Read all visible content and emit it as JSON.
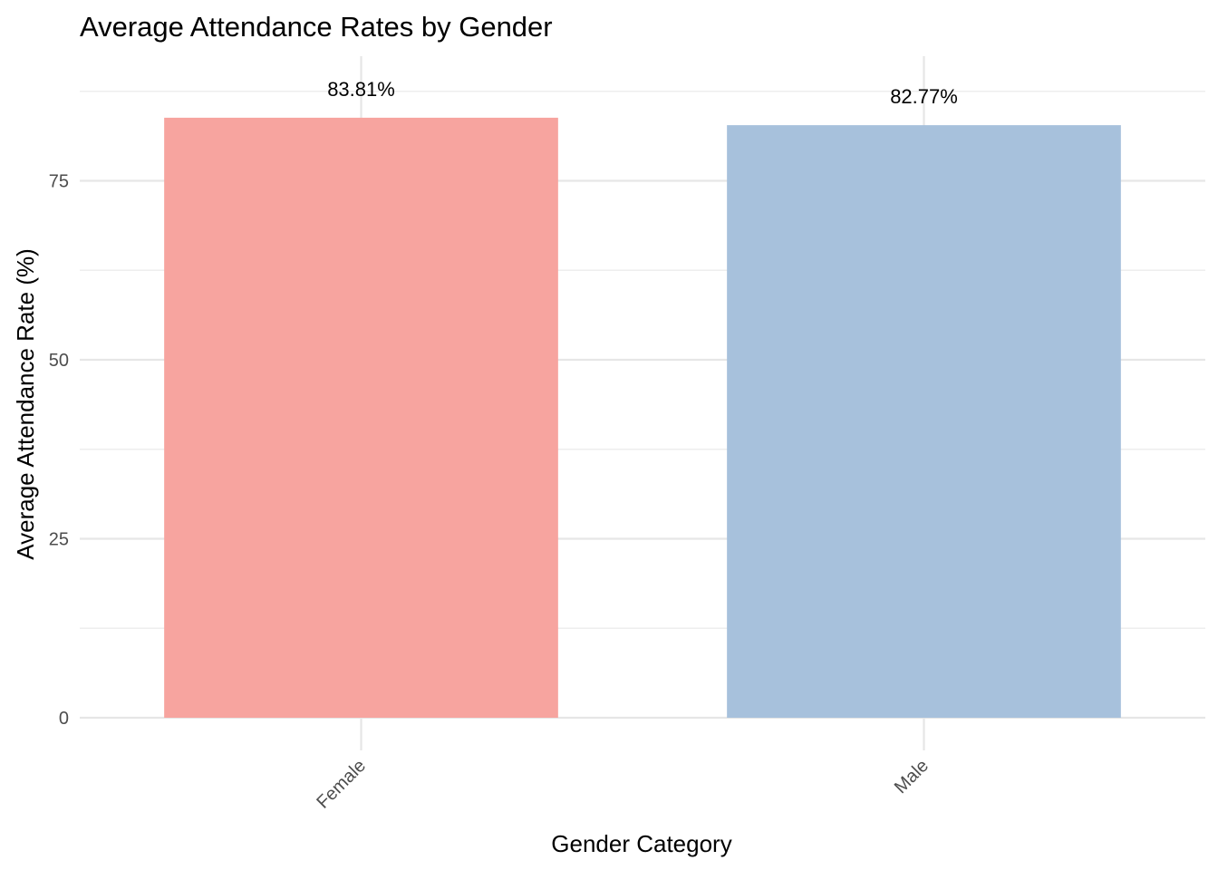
{
  "chart_data": {
    "type": "bar",
    "title": "Average Attendance Rates by Gender",
    "xlabel": "Gender Category",
    "ylabel": "Average Attendance Rate (%)",
    "categories": [
      "Female",
      "Male"
    ],
    "values": [
      83.81,
      82.77
    ],
    "data_labels": [
      "83.81%",
      "82.77%"
    ],
    "bar_colors": [
      "#F7A49F",
      "#A7C1DC"
    ],
    "ylim": [
      0,
      92.4
    ],
    "y_ticks": [
      0,
      25,
      50,
      75
    ],
    "y_tick_labels": [
      "0",
      "25",
      "50",
      "75"
    ],
    "grid": true,
    "legend": "none",
    "x_tick_rotation_deg": 45
  }
}
